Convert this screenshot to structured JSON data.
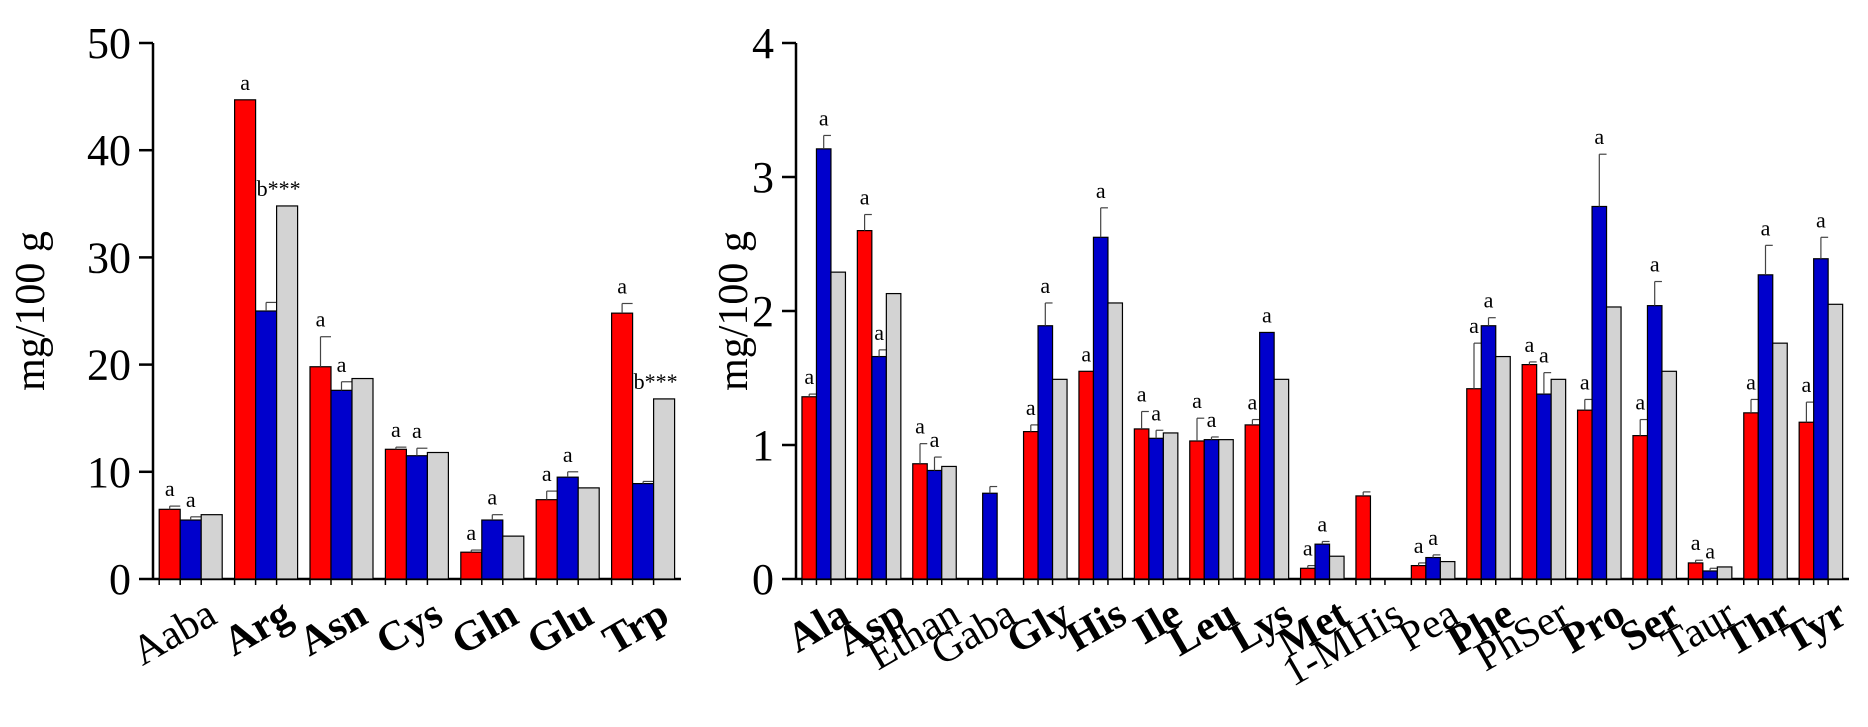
{
  "colors": {
    "red": "#ff0000",
    "blue": "#0000cc",
    "gray": "#d3d3d3",
    "axis": "#000000"
  },
  "chart_data": [
    {
      "type": "bar",
      "title": "",
      "xlabel": "",
      "ylabel": "mg/100 g",
      "ylim": [
        0,
        50
      ],
      "yticks": [
        "0",
        "10",
        "20",
        "30",
        "40",
        "50"
      ],
      "ytick_values": [
        0,
        10,
        20,
        30,
        40,
        50
      ],
      "categories": [
        "Aaba",
        "Arg",
        "Asn",
        "Cys",
        "Gln",
        "Glu",
        "Trp"
      ],
      "bold_categories": [
        false,
        true,
        true,
        true,
        true,
        true,
        true
      ],
      "series": [
        {
          "name": "red",
          "color": "#ff0000",
          "values": [
            6.5,
            44.7,
            19.8,
            12.1,
            2.5,
            7.4,
            24.8
          ],
          "errors": [
            0.3,
            0,
            2.8,
            0.2,
            0.2,
            0.8,
            0.9
          ]
        },
        {
          "name": "blue",
          "color": "#0000cc",
          "values": [
            5.5,
            25.0,
            17.6,
            11.5,
            5.5,
            9.5,
            8.9
          ],
          "errors": [
            0.3,
            0.8,
            0.8,
            0.7,
            0.5,
            0.5,
            0.2
          ]
        },
        {
          "name": "gray",
          "color": "#d3d3d3",
          "values": [
            6.0,
            34.8,
            18.7,
            11.8,
            4.0,
            8.5,
            16.8
          ],
          "errors": [
            0,
            0,
            0,
            0,
            0,
            0,
            0
          ]
        }
      ],
      "annotations": [
        {
          "category": 0,
          "series": 0,
          "text": "a"
        },
        {
          "category": 0,
          "series": 1,
          "text": "a"
        },
        {
          "category": 1,
          "series": 0,
          "text": "a"
        },
        {
          "category": 1,
          "series": 2,
          "text": "b***"
        },
        {
          "category": 2,
          "series": 0,
          "text": "a"
        },
        {
          "category": 2,
          "series": 1,
          "text": "a"
        },
        {
          "category": 3,
          "series": 0,
          "text": "a"
        },
        {
          "category": 3,
          "series": 1,
          "text": "a"
        },
        {
          "category": 4,
          "series": 0,
          "text": "a"
        },
        {
          "category": 4,
          "series": 1,
          "text": "a"
        },
        {
          "category": 5,
          "series": 0,
          "text": "a"
        },
        {
          "category": 5,
          "series": 1,
          "text": "a"
        },
        {
          "category": 6,
          "series": 0,
          "text": "a"
        },
        {
          "category": 6,
          "series": 2,
          "text": "b***"
        }
      ]
    },
    {
      "type": "bar",
      "title": "",
      "xlabel": "",
      "ylabel": "mg/100 g",
      "ylim": [
        0,
        4
      ],
      "yticks": [
        "0",
        "1",
        "2",
        "3",
        "4"
      ],
      "ytick_values": [
        0,
        1,
        2,
        3,
        4
      ],
      "categories": [
        "Ala",
        "Asp",
        "Ethan",
        "Gaba",
        "Gly",
        "His",
        "Ile",
        "Leu",
        "Lys",
        "Met",
        "1-MHis",
        "Pea",
        "Phe",
        "PhSer",
        "Pro",
        "Ser",
        "Taur",
        "Thr",
        "Tyr"
      ],
      "bold_categories": [
        true,
        true,
        false,
        false,
        true,
        true,
        true,
        true,
        true,
        true,
        false,
        false,
        true,
        false,
        true,
        true,
        false,
        true,
        true
      ],
      "series": [
        {
          "name": "red",
          "color": "#ff0000",
          "values": [
            1.36,
            2.6,
            0.86,
            0,
            1.1,
            1.55,
            1.12,
            1.03,
            1.15,
            0.08,
            0.62,
            0.1,
            1.42,
            1.6,
            1.26,
            1.07,
            0.12,
            1.24,
            1.17
          ],
          "errors": [
            0.02,
            0.12,
            0.15,
            0,
            0.05,
            0,
            0.13,
            0.17,
            0.04,
            0.02,
            0.03,
            0.02,
            0.34,
            0.02,
            0.08,
            0.12,
            0.02,
            0.1,
            0.15
          ]
        },
        {
          "name": "blue",
          "color": "#0000cc",
          "values": [
            3.21,
            1.66,
            0.81,
            0.64,
            1.89,
            2.55,
            1.05,
            1.04,
            1.84,
            0.26,
            0,
            0.16,
            1.89,
            1.38,
            2.78,
            2.04,
            0.06,
            2.27,
            2.39
          ],
          "errors": [
            0.1,
            0.05,
            0.1,
            0.05,
            0.17,
            0.22,
            0.06,
            0.02,
            0,
            0.02,
            0,
            0.02,
            0.06,
            0.16,
            0.39,
            0.18,
            0.02,
            0.22,
            0.16
          ]
        },
        {
          "name": "gray",
          "color": "#d3d3d3",
          "values": [
            2.29,
            2.13,
            0.84,
            0,
            1.49,
            2.06,
            1.09,
            1.04,
            1.49,
            0.17,
            0,
            0.13,
            1.66,
            1.49,
            2.03,
            1.55,
            0.09,
            1.76,
            2.05
          ],
          "errors": [
            0,
            0,
            0,
            0,
            0,
            0,
            0,
            0,
            0,
            0,
            0,
            0,
            0,
            0,
            0,
            0,
            0,
            0,
            0
          ]
        }
      ],
      "annotations": [
        {
          "category": 0,
          "series": 0,
          "text": "a"
        },
        {
          "category": 0,
          "series": 1,
          "text": "a"
        },
        {
          "category": 1,
          "series": 0,
          "text": "a"
        },
        {
          "category": 1,
          "series": 1,
          "text": "a"
        },
        {
          "category": 2,
          "series": 0,
          "text": "a"
        },
        {
          "category": 2,
          "series": 1,
          "text": "a"
        },
        {
          "category": 4,
          "series": 0,
          "text": "a"
        },
        {
          "category": 4,
          "series": 1,
          "text": "a"
        },
        {
          "category": 5,
          "series": 0,
          "text": "a"
        },
        {
          "category": 5,
          "series": 1,
          "text": "a"
        },
        {
          "category": 6,
          "series": 0,
          "text": "a"
        },
        {
          "category": 6,
          "series": 1,
          "text": "a"
        },
        {
          "category": 7,
          "series": 0,
          "text": "a"
        },
        {
          "category": 7,
          "series": 1,
          "text": "a"
        },
        {
          "category": 8,
          "series": 0,
          "text": "a"
        },
        {
          "category": 8,
          "series": 1,
          "text": "a"
        },
        {
          "category": 9,
          "series": 0,
          "text": "a"
        },
        {
          "category": 9,
          "series": 1,
          "text": "a"
        },
        {
          "category": 11,
          "series": 0,
          "text": "a"
        },
        {
          "category": 11,
          "series": 1,
          "text": "a"
        },
        {
          "category": 12,
          "series": 0,
          "text": "a"
        },
        {
          "category": 12,
          "series": 1,
          "text": "a"
        },
        {
          "category": 13,
          "series": 0,
          "text": "a"
        },
        {
          "category": 13,
          "series": 1,
          "text": "a"
        },
        {
          "category": 14,
          "series": 0,
          "text": "a"
        },
        {
          "category": 14,
          "series": 1,
          "text": "a"
        },
        {
          "category": 15,
          "series": 0,
          "text": "a"
        },
        {
          "category": 15,
          "series": 1,
          "text": "a"
        },
        {
          "category": 16,
          "series": 0,
          "text": "a"
        },
        {
          "category": 16,
          "series": 1,
          "text": "a"
        },
        {
          "category": 17,
          "series": 0,
          "text": "a"
        },
        {
          "category": 17,
          "series": 1,
          "text": "a"
        },
        {
          "category": 18,
          "series": 0,
          "text": "a"
        },
        {
          "category": 18,
          "series": 1,
          "text": "a"
        }
      ]
    }
  ]
}
